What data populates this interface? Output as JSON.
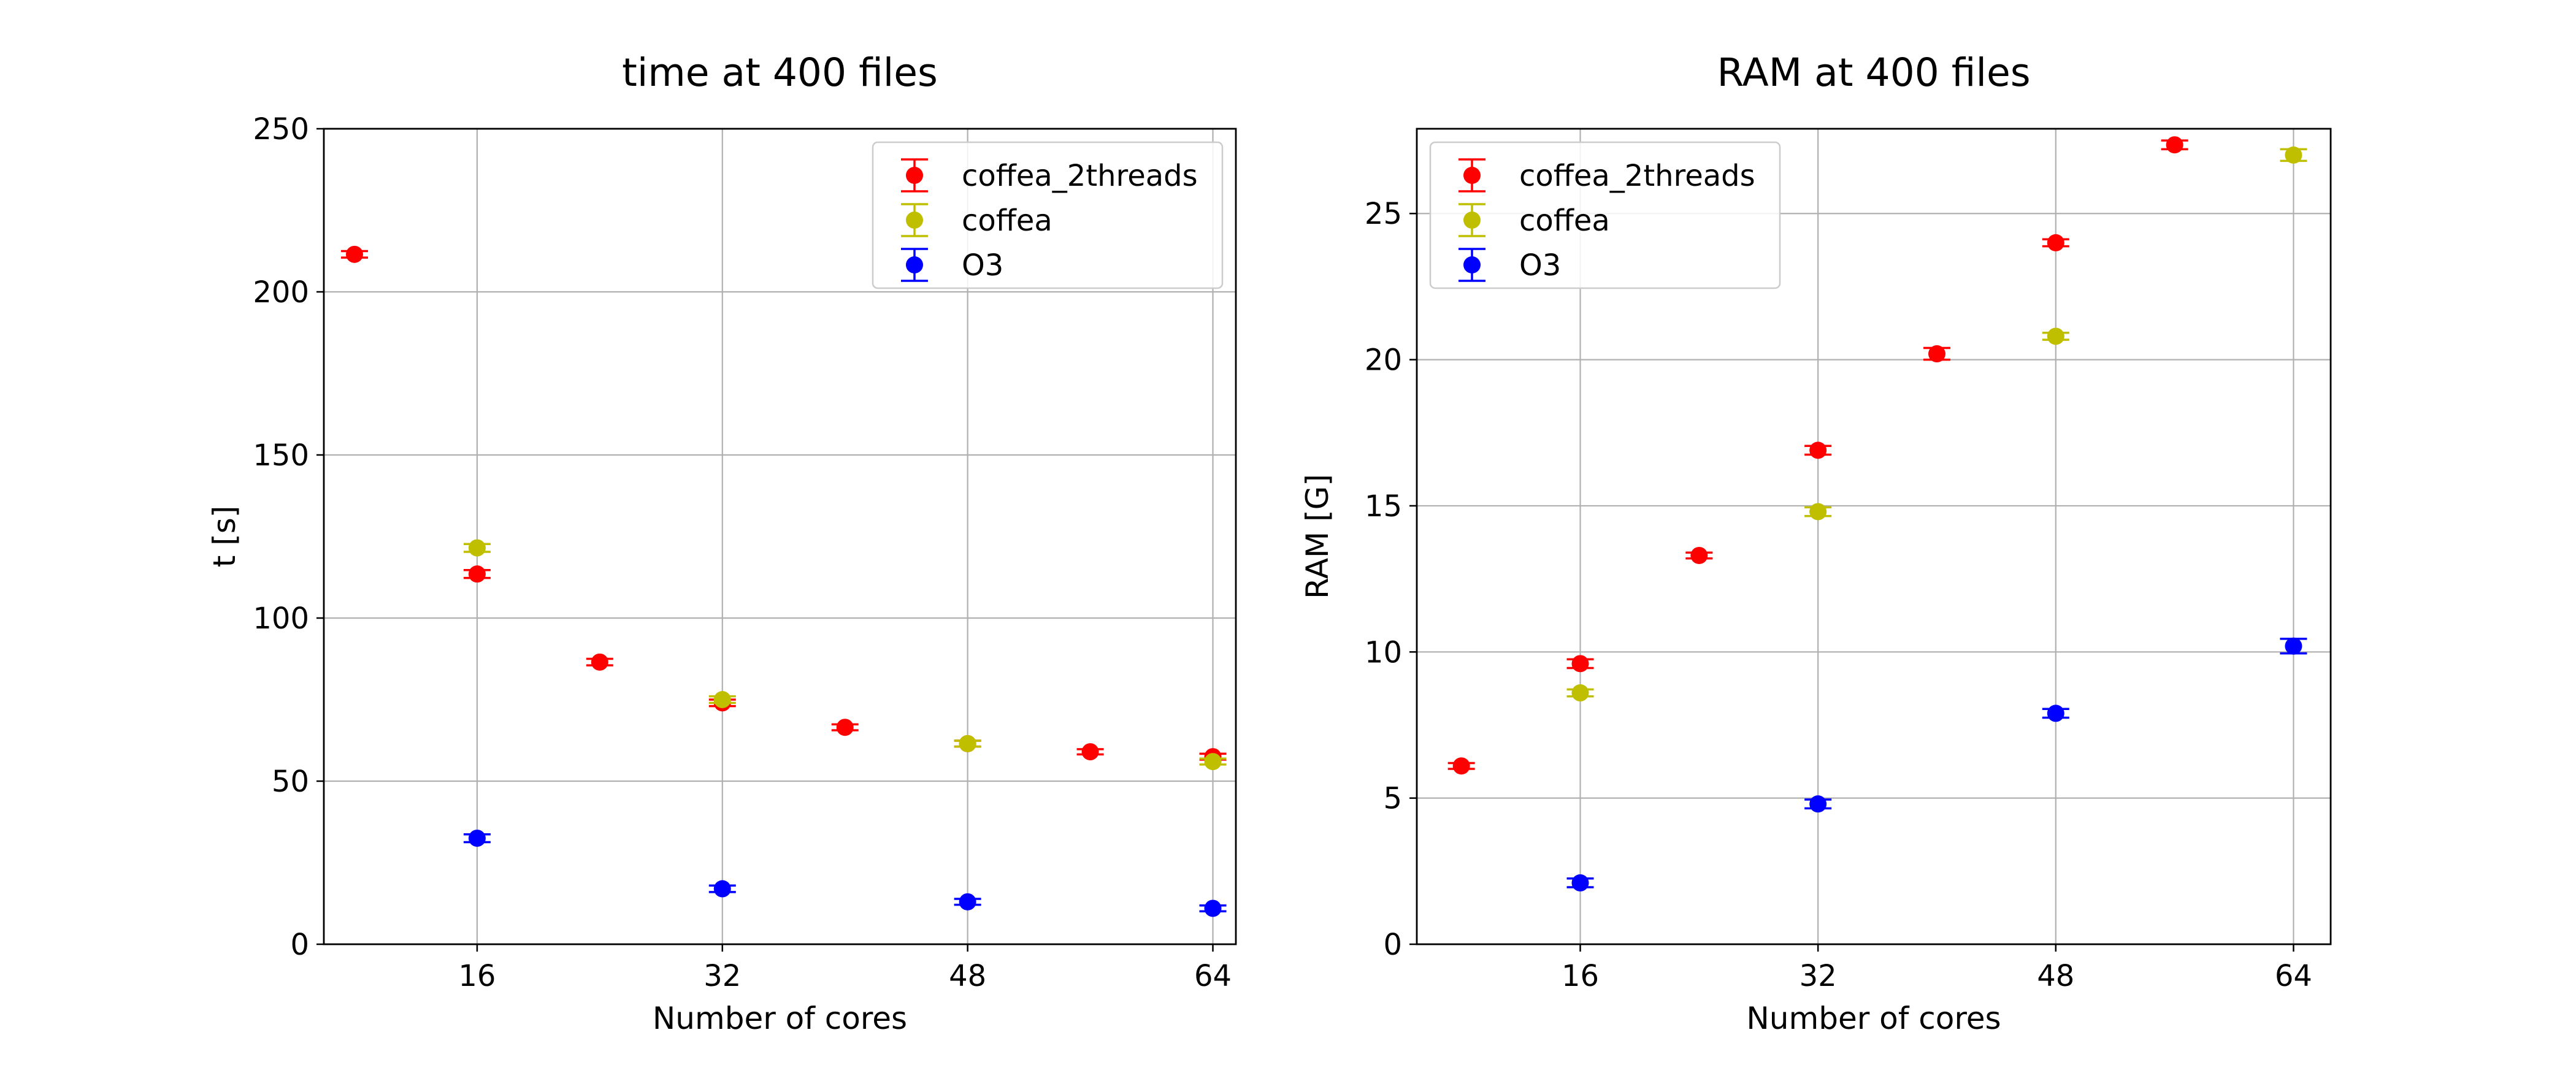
{
  "chart_data": [
    {
      "type": "scatter",
      "title": "time at 400 files",
      "xlabel": "Number of cores",
      "ylabel": "t [s]",
      "xlim": [
        6,
        65.5
      ],
      "ylim": [
        0,
        250
      ],
      "xticks": [
        16,
        32,
        48,
        64
      ],
      "yticks": [
        0,
        50,
        100,
        150,
        200,
        250
      ],
      "grid": true,
      "legend_position": "top-right",
      "series": [
        {
          "name": "coffea_2threads",
          "color": "#ff0000",
          "x": [
            8,
            16,
            24,
            32,
            40,
            48,
            56,
            64
          ],
          "y": [
            211.5,
            113.5,
            86.5,
            74,
            66.5,
            61.5,
            59,
            57.5
          ],
          "yerr": [
            1,
            1.2,
            1,
            1,
            0.9,
            0.9,
            0.8,
            0.9
          ]
        },
        {
          "name": "coffea",
          "color": "#bfbf00",
          "x": [
            16,
            32,
            48,
            64
          ],
          "y": [
            121.5,
            75,
            61.5,
            56
          ],
          "yerr": [
            1.2,
            1,
            0.9,
            0.9
          ]
        },
        {
          "name": "O3",
          "color": "#0000ff",
          "x": [
            16,
            32,
            48,
            64
          ],
          "y": [
            32.5,
            17,
            13,
            11
          ],
          "yerr": [
            1.2,
            1,
            0.9,
            0.9
          ]
        }
      ]
    },
    {
      "type": "scatter",
      "title": "RAM at 400 files",
      "xlabel": "Number of cores",
      "ylabel": "RAM [G]",
      "xlim": [
        5,
        66.5
      ],
      "ylim": [
        0,
        27.9
      ],
      "xticks": [
        16,
        32,
        48,
        64
      ],
      "yticks": [
        0,
        5,
        10,
        15,
        20,
        25
      ],
      "grid": true,
      "legend_position": "top-left",
      "series": [
        {
          "name": "coffea_2threads",
          "color": "#ff0000",
          "x": [
            8,
            16,
            24,
            32,
            40,
            48,
            56
          ],
          "y": [
            6.1,
            9.6,
            13.3,
            16.9,
            20.2,
            24,
            27.35
          ],
          "yerr": [
            0.1,
            0.15,
            0.1,
            0.15,
            0.2,
            0.12,
            0.15
          ]
        },
        {
          "name": "coffea",
          "color": "#bfbf00",
          "x": [
            16,
            32,
            48,
            64
          ],
          "y": [
            8.6,
            14.8,
            20.8,
            27
          ],
          "yerr": [
            0.12,
            0.15,
            0.12,
            0.2
          ]
        },
        {
          "name": "O3",
          "color": "#0000ff",
          "x": [
            16,
            32,
            48,
            64
          ],
          "y": [
            2.1,
            4.8,
            7.9,
            10.2
          ],
          "yerr": [
            0.15,
            0.15,
            0.15,
            0.25
          ]
        }
      ]
    }
  ]
}
